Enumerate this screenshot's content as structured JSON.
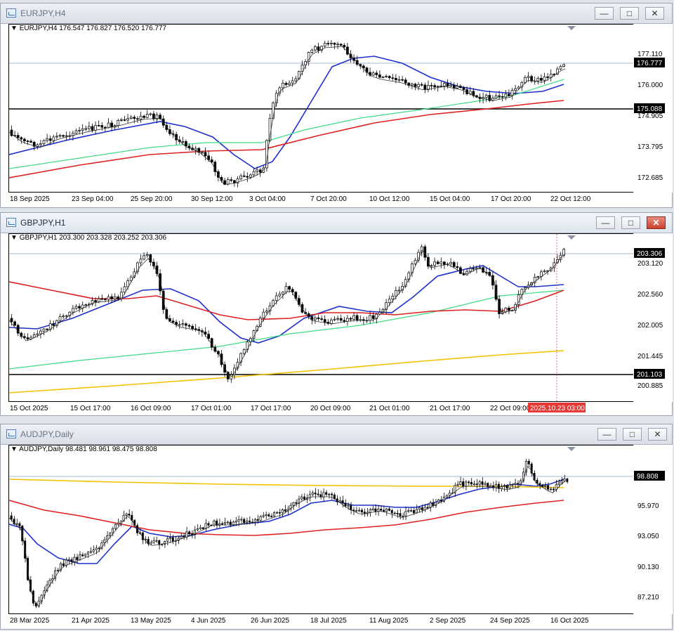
{
  "windows": [
    {
      "title": "EURJPY,H4",
      "info": "EURJPY,H4  176.547 176.827 176.520 176.777",
      "price_labels": [
        "177.110",
        "176.000",
        "174.905",
        "173.795",
        "172.685"
      ],
      "current_price": "176.777",
      "line_price": "175.088",
      "dates": [
        "18 Sep 2025",
        "23 Sep 04:00",
        "25 Sep 20:00",
        "30 Sep 12:00",
        "3 Oct 04:00",
        "7 Oct 20:00",
        "10 Oct 12:00",
        "15 Oct 04:00",
        "17 Oct 20:00",
        "22 Oct 12:00"
      ]
    },
    {
      "title": "GBPJPY,H1",
      "info": "GBPJPY,H1  203.300 203.328 203.252 203.306",
      "price_labels": [
        "203.120",
        "202.560",
        "202.005",
        "201.445",
        "200.885"
      ],
      "current_price": "203.306",
      "line_price": "201.103",
      "crosshair_time": "2025.10.23 03:00",
      "dates": [
        "15 Oct 2025",
        "15 Oct 17:00",
        "16 Oct 09:00",
        "17 Oct 01:00",
        "17 Oct 17:00",
        "20 Oct 09:00",
        "21 Oct 01:00",
        "21 Oct 17:00",
        "22 Oct 09:00"
      ]
    },
    {
      "title": "AUDJPY,Daily",
      "info": "AUDJPY,Daily  98.481 98.961 98.475 98.808",
      "price_labels": [
        "95.970",
        "93.050",
        "90.130",
        "87.210"
      ],
      "current_price": "98.808",
      "dates": [
        "28 Mar 2025",
        "21 Apr 2025",
        "13 May 2025",
        "4 Jun 2025",
        "26 Jun 2025",
        "18 Jul 2025",
        "11 Aug 2025",
        "2 Sep 2025",
        "24 Sep 2025",
        "16 Oct 2025"
      ]
    }
  ],
  "buttons": {
    "minimize": "—",
    "maximize": "□",
    "close": "✕"
  },
  "colors": {
    "ma_fast": "#1f2fcf",
    "ma_slow": "#e02020",
    "ma_green": "#3ddc84",
    "ma_yellow": "#f2c200",
    "hline": "#000000",
    "crosshair": "#e53935"
  }
}
